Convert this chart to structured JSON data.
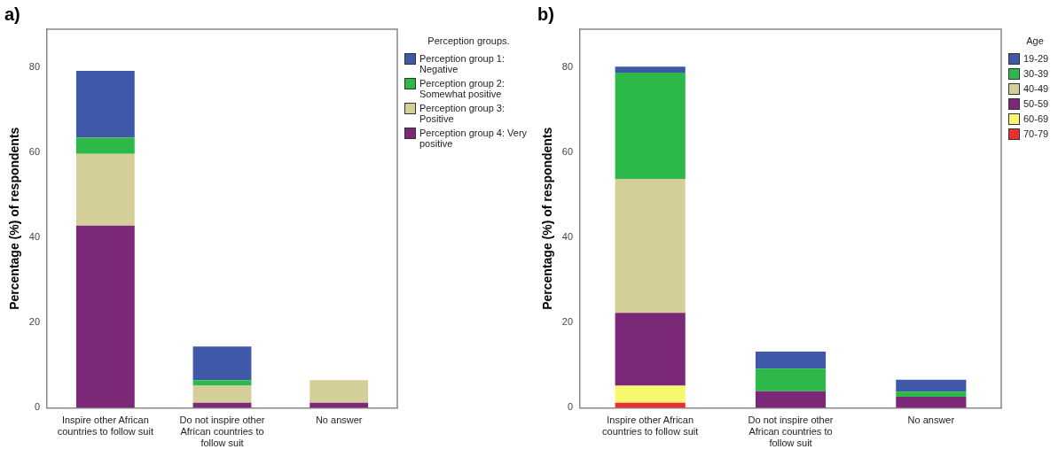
{
  "chart_data": [
    {
      "type": "bar",
      "title": "a)",
      "ylabel": "Percentage (%) of respondents",
      "legend_title": "Perception groups.",
      "categories": [
        "Inspire other African countries to follow suit",
        "Do not inspire other African countries to follow suit",
        "No answer"
      ],
      "stacked": true,
      "legend": "right",
      "grid": false,
      "ylim": [
        0,
        89
      ],
      "yticks": [
        0,
        20,
        40,
        60,
        80
      ],
      "series": [
        {
          "name": "Perception group 4: Very positive",
          "color": "#7b2878",
          "values": [
            42.8,
            1.2,
            1.2
          ]
        },
        {
          "name": "Perception group 3: Positive",
          "color": "#d4cf98",
          "values": [
            16.9,
            4.0,
            5.3
          ]
        },
        {
          "name": "Perception group 2: Somewhat positive",
          "color": "#2db84a",
          "values": [
            3.8,
            1.3,
            null
          ]
        },
        {
          "name": "Perception group 1: Negative",
          "color": "#3f58a8",
          "values": [
            15.7,
            7.9,
            null
          ]
        }
      ]
    },
    {
      "type": "bar",
      "title": "b)",
      "ylabel": "Percentage (%) of respondents",
      "legend_title": "Age",
      "categories": [
        "Inspire other African countries to follow suit",
        "Do not inspire other African countries to follow suit",
        "No answer"
      ],
      "stacked": true,
      "legend": "right",
      "grid": false,
      "ylim": [
        0,
        89
      ],
      "yticks": [
        0,
        20,
        40,
        60,
        80
      ],
      "series": [
        {
          "name": "70-79",
          "color": "#e83030",
          "values": [
            1.2,
            null,
            null
          ]
        },
        {
          "name": "60-69",
          "color": "#f8f86e",
          "values": [
            4.0,
            null,
            null
          ]
        },
        {
          "name": "50-59",
          "color": "#7b2878",
          "values": [
            17.1,
            3.9,
            2.6
          ]
        },
        {
          "name": "40-49",
          "color": "#d4cf98",
          "values": [
            31.5,
            null,
            null
          ]
        },
        {
          "name": "30-39",
          "color": "#2db84a",
          "values": [
            25.0,
            5.3,
            1.2
          ]
        },
        {
          "name": "19-29",
          "color": "#3f58a8",
          "values": [
            1.4,
            4.0,
            2.8
          ]
        }
      ]
    }
  ]
}
